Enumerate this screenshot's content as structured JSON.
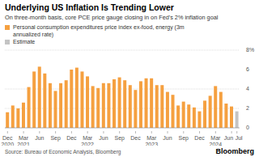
{
  "chart_data": {
    "type": "bar",
    "title": "Underlying US Inflation Is Trending Lower",
    "subtitle": "On three-month basis, core PCE price gauge closing in on Fed's 2% inflation goal",
    "source": "Source: Bureau of Economic Analysis, Bloomberg",
    "logo": "Bloomberg",
    "categories": [
      "Dec 2020",
      null,
      null,
      "Mar 2021",
      null,
      null,
      "Jun",
      null,
      null,
      "Sep",
      null,
      null,
      "Dec",
      null,
      null,
      "Mar 2022",
      null,
      null,
      "Jun",
      null,
      null,
      "Sep",
      null,
      null,
      "Dec",
      null,
      null,
      "Mar 2023",
      null,
      null,
      "Jun",
      null,
      null,
      "Sep",
      null,
      null,
      "Dec",
      null,
      null,
      "Mar 2024",
      null,
      null,
      "Jun",
      "Jul"
    ],
    "series": [
      {
        "name": "Personal consumption expenditures price index ex-food, energy (3m annualized rate)",
        "color": "#f5a040",
        "values": [
          1.6,
          2.3,
          2.0,
          2.6,
          4.2,
          5.8,
          6.3,
          5.6,
          4.6,
          3.8,
          4.6,
          4.9,
          6.0,
          6.2,
          5.8,
          5.3,
          4.3,
          4.1,
          4.6,
          4.6,
          5.0,
          5.2,
          4.9,
          4.4,
          3.9,
          4.8,
          5.1,
          5.1,
          4.4,
          4.4,
          3.7,
          3.4,
          2.3,
          2.7,
          2.4,
          2.1,
          1.7,
          2.8,
          3.3,
          4.3,
          3.7,
          2.5,
          2.2,
          null
        ]
      },
      {
        "name": "Estimate",
        "color": "#c4c4c4",
        "values": [
          null,
          null,
          null,
          null,
          null,
          null,
          null,
          null,
          null,
          null,
          null,
          null,
          null,
          null,
          null,
          null,
          null,
          null,
          null,
          null,
          null,
          null,
          null,
          null,
          null,
          null,
          null,
          null,
          null,
          null,
          null,
          null,
          null,
          null,
          null,
          null,
          null,
          null,
          null,
          null,
          null,
          null,
          null,
          1.7
        ]
      }
    ],
    "ylim": [
      0,
      8
    ],
    "yticks": [
      0,
      2,
      4,
      6,
      {
        "value": 8,
        "label": "8%"
      }
    ],
    "grid": true
  }
}
